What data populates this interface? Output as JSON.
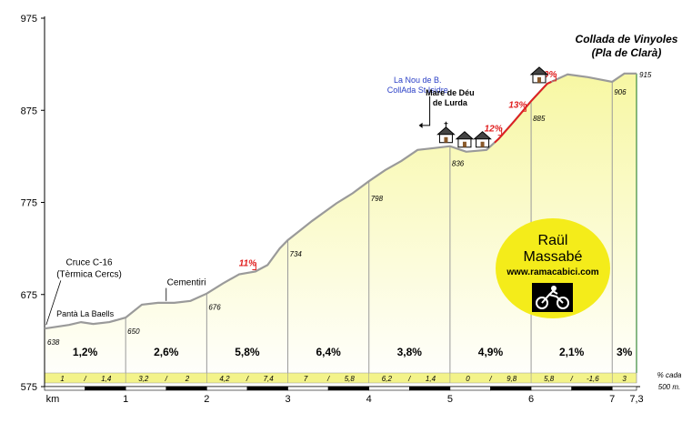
{
  "chart_data": {
    "type": "area",
    "title": "Collada de Vinyoles",
    "subtitle": "(Pla de Clarà)",
    "xlabel": "km",
    "ylabel": "",
    "xlim": [
      0,
      7.3
    ],
    "ylim": [
      575,
      975
    ],
    "y_ticks": [
      575,
      675,
      775,
      875,
      975
    ],
    "x_ticks": [
      {
        "km": 1,
        "label": "1"
      },
      {
        "km": 2,
        "label": "2"
      },
      {
        "km": 3,
        "label": "3"
      },
      {
        "km": 4,
        "label": "4"
      },
      {
        "km": 5,
        "label": "5"
      },
      {
        "km": 6,
        "label": "6"
      },
      {
        "km": 7,
        "label": "7"
      },
      {
        "km": 7.3,
        "label": "7,3"
      }
    ],
    "grid": false,
    "profile": [
      [
        0,
        638
      ],
      [
        0.15,
        640
      ],
      [
        0.3,
        642
      ],
      [
        0.45,
        645
      ],
      [
        0.6,
        643
      ],
      [
        0.8,
        645
      ],
      [
        1,
        650
      ],
      [
        1.2,
        664
      ],
      [
        1.4,
        666
      ],
      [
        1.6,
        666
      ],
      [
        1.8,
        668
      ],
      [
        2,
        676
      ],
      [
        2.2,
        687
      ],
      [
        2.4,
        697
      ],
      [
        2.6,
        700
      ],
      [
        2.75,
        707
      ],
      [
        2.9,
        725
      ],
      [
        3,
        734
      ],
      [
        3.3,
        755
      ],
      [
        3.6,
        774
      ],
      [
        3.8,
        785
      ],
      [
        4,
        798
      ],
      [
        4.2,
        810
      ],
      [
        4.4,
        820
      ],
      [
        4.6,
        832
      ],
      [
        4.8,
        834
      ],
      [
        5,
        836
      ],
      [
        5.2,
        830
      ],
      [
        5.45,
        832
      ],
      [
        5.6,
        844
      ],
      [
        5.8,
        864
      ],
      [
        6,
        885
      ],
      [
        6.2,
        904
      ],
      [
        6.45,
        914
      ],
      [
        6.7,
        911
      ],
      [
        7,
        906
      ],
      [
        7.15,
        915
      ],
      [
        7.3,
        915
      ]
    ],
    "km_marks": [
      {
        "km": 0,
        "alt": "638"
      },
      {
        "km": 1,
        "alt": "650"
      },
      {
        "km": 2,
        "alt": "676"
      },
      {
        "km": 3,
        "alt": "734"
      },
      {
        "km": 4,
        "alt": "798"
      },
      {
        "km": 5,
        "alt": "836"
      },
      {
        "km": 6,
        "alt": "885"
      },
      {
        "km": 7,
        "alt": "906"
      },
      {
        "km": 7.3,
        "alt": "915"
      }
    ],
    "segment_gradients": [
      {
        "from": 0,
        "to": 1,
        "avg": "1,2%",
        "detail": [
          "1",
          "1,4"
        ]
      },
      {
        "from": 1,
        "to": 2,
        "avg": "2,6%",
        "detail": [
          "3,2",
          "2"
        ]
      },
      {
        "from": 2,
        "to": 3,
        "avg": "5,8%",
        "detail": [
          "4,2",
          "7,4"
        ]
      },
      {
        "from": 3,
        "to": 4,
        "avg": "6,4%",
        "detail": [
          "7",
          "5,8"
        ]
      },
      {
        "from": 4,
        "to": 5,
        "avg": "3,8%",
        "detail": [
          "6,2",
          "1,4"
        ]
      },
      {
        "from": 5,
        "to": 6,
        "avg": "4,9%",
        "detail": [
          "0",
          "9,8"
        ]
      },
      {
        "from": 6,
        "to": 7,
        "avg": "2,1%",
        "detail": [
          "5,8",
          "-1,6"
        ]
      },
      {
        "from": 7,
        "to": 7.3,
        "avg": "3%",
        "detail": [
          "3"
        ]
      }
    ],
    "steep_markers": [
      {
        "km": 2.55,
        "alt": 700,
        "label": "11%"
      },
      {
        "km": 5.58,
        "alt": 846,
        "label": "12%"
      },
      {
        "km": 5.88,
        "alt": 872,
        "label": "13%"
      },
      {
        "km": 6.25,
        "alt": 905,
        "label": "10%"
      }
    ],
    "annotations": [
      {
        "lines": [
          "Cruce C-16",
          "(Tèrmica Cercs)"
        ],
        "km": 0.55,
        "alt": 707
      },
      {
        "lines": [
          "Pantà La Baells"
        ],
        "km": 0.5,
        "alt": 651
      },
      {
        "lines": [
          "Cementiri"
        ],
        "km": 1.75,
        "alt": 685
      },
      {
        "lines": [
          "La Nou de B.",
          "CollAda St.Isidre"
        ],
        "km": 4.6,
        "alt": 905
      },
      {
        "lines": [
          "Mare de Déu",
          "de Lurda"
        ],
        "km": 5.0,
        "alt": 891
      }
    ],
    "note": [
      "% cada",
      "500 m."
    ],
    "logo": {
      "name": "Raül",
      "surname": "Massabé",
      "site": "www.ramacabici.com"
    },
    "colors": {
      "fill": "#f7f7a3",
      "line": "#9a9a9a",
      "steep": "#e02020",
      "axis": "#000000",
      "info": "#2a3fc6"
    }
  }
}
